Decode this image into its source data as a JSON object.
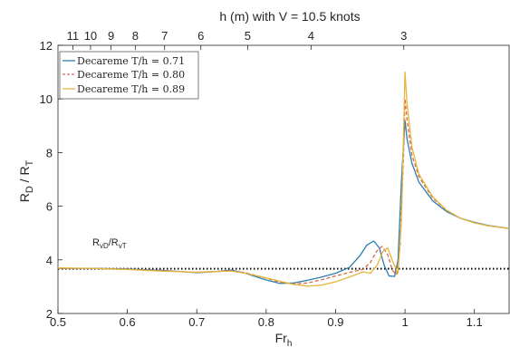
{
  "chart_data": {
    "type": "line",
    "title": "h (m) with V = 10.5 knots",
    "top_axis": {
      "label": "h (m) with V = 10.5 knots",
      "ticks": [
        {
          "label": "11",
          "fr": 0.5214
        },
        {
          "label": "10",
          "fr": 0.5469
        },
        {
          "label": "9",
          "fr": 0.5765
        },
        {
          "label": "8",
          "fr": 0.6114
        },
        {
          "label": "7",
          "fr": 0.6536
        },
        {
          "label": "6",
          "fr": 0.7059
        },
        {
          "label": "5",
          "fr": 0.7733
        },
        {
          "label": "4",
          "fr": 0.8646
        },
        {
          "label": "3",
          "fr": 0.9983
        }
      ]
    },
    "x_axis": {
      "label": "Fr",
      "label_subscript": "h",
      "range": [
        0.5,
        1.15
      ],
      "ticks": [
        0.5,
        0.6,
        0.7,
        0.8,
        0.9,
        1,
        1.1
      ],
      "tick_labels": [
        "0.5",
        "0.6",
        "0.7",
        "0.8",
        "0.9",
        "1",
        "1.1"
      ]
    },
    "y_axis": {
      "label": "R",
      "label_subscript_1": "D",
      "label_mid": " / R",
      "label_subscript_2": "T",
      "range": [
        2,
        12
      ],
      "ticks": [
        2,
        4,
        6,
        8,
        10,
        12
      ],
      "tick_labels": [
        "2",
        "4",
        "6",
        "8",
        "10",
        "12"
      ]
    },
    "legend": {
      "position": "top-left",
      "entries": [
        {
          "name": "Decareme T/h = 0.71",
          "color": "#2E7FAF",
          "dash": "solid"
        },
        {
          "name": "Decareme T/h = 0.80",
          "color": "#D9694B",
          "dash": "dashed"
        },
        {
          "name": "Decareme T/h = 0.89",
          "color": "#E5B63C",
          "dash": "solid"
        }
      ]
    },
    "reference_line": {
      "label": "R",
      "label_sub1": "vD",
      "label_mid": "/R",
      "label_sub2": "vT",
      "y": 3.67,
      "color": "#000000",
      "dash": "dotted"
    },
    "series": [
      {
        "name": "Decareme T/h = 0.71",
        "color": "#2E7FAF",
        "dash": "solid",
        "points": [
          [
            0.5,
            3.68
          ],
          [
            0.55,
            3.68
          ],
          [
            0.6,
            3.66
          ],
          [
            0.65,
            3.61
          ],
          [
            0.7,
            3.52
          ],
          [
            0.72,
            3.55
          ],
          [
            0.75,
            3.62
          ],
          [
            0.77,
            3.5
          ],
          [
            0.8,
            3.25
          ],
          [
            0.82,
            3.12
          ],
          [
            0.84,
            3.14
          ],
          [
            0.86,
            3.24
          ],
          [
            0.88,
            3.36
          ],
          [
            0.9,
            3.5
          ],
          [
            0.92,
            3.72
          ],
          [
            0.935,
            4.15
          ],
          [
            0.945,
            4.55
          ],
          [
            0.955,
            4.7
          ],
          [
            0.963,
            4.45
          ],
          [
            0.97,
            3.8
          ],
          [
            0.977,
            3.4
          ],
          [
            0.985,
            3.38
          ],
          [
            0.99,
            4.0
          ],
          [
            0.995,
            7.0
          ],
          [
            1.0,
            9.2
          ],
          [
            1.003,
            8.5
          ],
          [
            1.01,
            7.6
          ],
          [
            1.02,
            6.9
          ],
          [
            1.04,
            6.2
          ],
          [
            1.06,
            5.8
          ],
          [
            1.08,
            5.55
          ],
          [
            1.1,
            5.4
          ],
          [
            1.12,
            5.28
          ],
          [
            1.15,
            5.17
          ]
        ]
      },
      {
        "name": "Decareme T/h = 0.80",
        "color": "#D9694B",
        "dash": "dashed",
        "points": [
          [
            0.5,
            3.68
          ],
          [
            0.55,
            3.68
          ],
          [
            0.6,
            3.65
          ],
          [
            0.65,
            3.6
          ],
          [
            0.7,
            3.53
          ],
          [
            0.72,
            3.55
          ],
          [
            0.75,
            3.6
          ],
          [
            0.77,
            3.52
          ],
          [
            0.8,
            3.32
          ],
          [
            0.82,
            3.16
          ],
          [
            0.84,
            3.1
          ],
          [
            0.86,
            3.14
          ],
          [
            0.88,
            3.26
          ],
          [
            0.9,
            3.4
          ],
          [
            0.92,
            3.53
          ],
          [
            0.94,
            3.65
          ],
          [
            0.95,
            3.9
          ],
          [
            0.96,
            4.35
          ],
          [
            0.967,
            4.5
          ],
          [
            0.975,
            4.2
          ],
          [
            0.982,
            3.6
          ],
          [
            0.988,
            3.45
          ],
          [
            0.993,
            4.5
          ],
          [
            0.998,
            8.0
          ],
          [
            1.0,
            10.0
          ],
          [
            1.003,
            9.2
          ],
          [
            1.01,
            7.9
          ],
          [
            1.02,
            7.1
          ],
          [
            1.04,
            6.3
          ],
          [
            1.06,
            5.85
          ],
          [
            1.08,
            5.55
          ],
          [
            1.1,
            5.38
          ],
          [
            1.12,
            5.27
          ],
          [
            1.15,
            5.17
          ]
        ]
      },
      {
        "name": "Decareme T/h = 0.89",
        "color": "#E5B63C",
        "dash": "solid",
        "points": [
          [
            0.5,
            3.7
          ],
          [
            0.55,
            3.68
          ],
          [
            0.6,
            3.64
          ],
          [
            0.65,
            3.58
          ],
          [
            0.7,
            3.54
          ],
          [
            0.72,
            3.56
          ],
          [
            0.75,
            3.58
          ],
          [
            0.77,
            3.5
          ],
          [
            0.8,
            3.33
          ],
          [
            0.82,
            3.2
          ],
          [
            0.84,
            3.08
          ],
          [
            0.86,
            3.02
          ],
          [
            0.88,
            3.06
          ],
          [
            0.9,
            3.18
          ],
          [
            0.92,
            3.36
          ],
          [
            0.94,
            3.55
          ],
          [
            0.95,
            3.5
          ],
          [
            0.96,
            3.8
          ],
          [
            0.968,
            4.3
          ],
          [
            0.975,
            4.45
          ],
          [
            0.983,
            3.9
          ],
          [
            0.99,
            3.5
          ],
          [
            0.995,
            5.5
          ],
          [
            1.0,
            11.0
          ],
          [
            1.003,
            9.8
          ],
          [
            1.01,
            8.2
          ],
          [
            1.02,
            7.2
          ],
          [
            1.04,
            6.35
          ],
          [
            1.06,
            5.85
          ],
          [
            1.08,
            5.55
          ],
          [
            1.1,
            5.38
          ],
          [
            1.12,
            5.27
          ],
          [
            1.15,
            5.17
          ]
        ]
      }
    ]
  }
}
